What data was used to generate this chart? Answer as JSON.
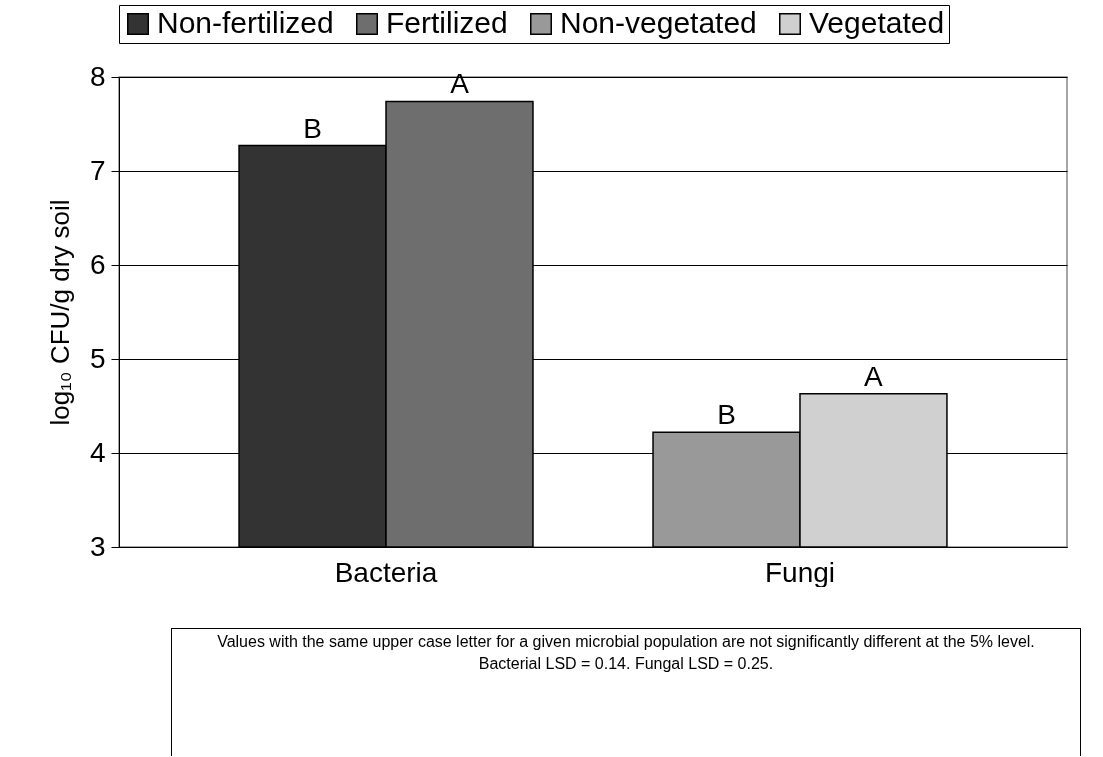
{
  "chart_data": {
    "type": "bar",
    "categories": [
      "Bacteria",
      "Fungi"
    ],
    "ylabel": "log₁₀ CFU/g dry soil",
    "series": [
      {
        "name": "Non-fertilized",
        "color": "#333333",
        "values": [
          7.27,
          null
        ]
      },
      {
        "name": "Fertilized",
        "color": "#6e6e6e",
        "values": [
          7.74,
          null
        ]
      },
      {
        "name": "Non-vegetated",
        "color": "#999999",
        "values": [
          null,
          4.22
        ]
      },
      {
        "name": "Vegetated",
        "color": "#d0d0d0",
        "values": [
          null,
          4.63
        ]
      }
    ],
    "ylim": [
      3,
      8
    ],
    "yticks": [
      3,
      4,
      5,
      6,
      7,
      8
    ],
    "grid": "y",
    "legend": "top",
    "annotations": [
      {
        "text": "B",
        "x": "Bacteria",
        "y": 7.27
      },
      {
        "text": "A",
        "x": "Bacteria",
        "y": 7.74
      },
      {
        "text": "B",
        "x": "Fungi",
        "y": 4.22
      },
      {
        "text": "A",
        "x": "Fungi",
        "y": 4.63
      },
      "Values with the same upper case letter for a given microbial population are not significantly different at the 5% level.",
      "Bacterial LSD = 0.14. Fungal LSD = 0.25."
    ]
  }
}
